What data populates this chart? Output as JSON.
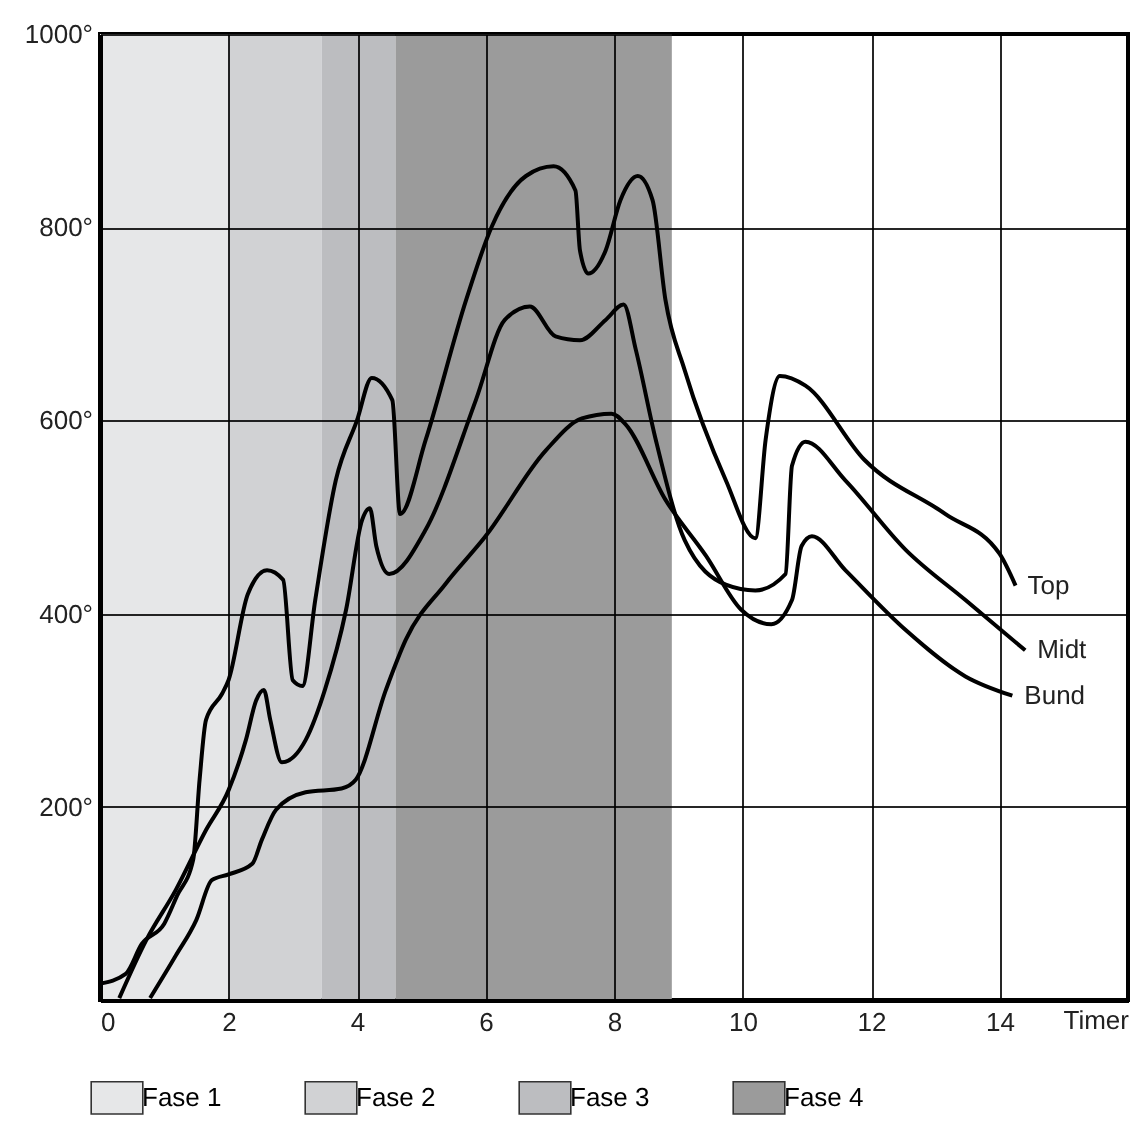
{
  "chart_data": {
    "type": "line",
    "xlabel": "Timer",
    "xlim": [
      0,
      16
    ],
    "xticks": [
      0,
      2,
      4,
      6,
      8,
      10,
      12,
      14
    ],
    "ylim": [
      0,
      1000
    ],
    "yticks": [
      {
        "value": 200,
        "label": "200°"
      },
      {
        "value": 400,
        "label": "400°"
      },
      {
        "value": 600,
        "label": "600°"
      },
      {
        "value": 800,
        "label": "800°"
      },
      {
        "value": 1000,
        "label": "1000°"
      }
    ],
    "grid": true,
    "legend": "bottom",
    "bands": [
      {
        "axis": "x",
        "from": 0,
        "to": 2,
        "label": "Fase 1",
        "color": "#e6e7e8"
      },
      {
        "axis": "x",
        "from": 2,
        "to": 3.45,
        "label": "Fase 2",
        "color": "#d1d2d4"
      },
      {
        "axis": "x",
        "from": 3.45,
        "to": 4.6,
        "label": "Fase 3",
        "color": "#bcbdc0"
      },
      {
        "axis": "x",
        "from": 4.6,
        "to": 8.9,
        "label": "Fase 4",
        "color": "#9b9b9b"
      }
    ],
    "series": [
      {
        "name": "Top",
        "color": "#000000",
        "x": [
          0,
          0.4,
          0.65,
          1.0,
          1.2,
          1.45,
          1.55,
          1.65,
          1.9,
          2.0,
          2.3,
          2.6,
          2.85,
          3.0,
          3.15,
          3.35,
          3.67,
          4.0,
          4.23,
          4.55,
          4.67,
          5.07,
          5.7,
          6.1,
          6.63,
          7.06,
          7.4,
          7.47,
          7.6,
          7.87,
          8.1,
          8.37,
          8.6,
          8.8,
          9.1,
          9.74,
          10.2,
          10.36,
          10.58,
          10.98,
          11.9,
          13.16,
          14.0,
          14.25
        ],
        "values": [
          17,
          27,
          58,
          79,
          108,
          145,
          228,
          290,
          317,
          331,
          420,
          445,
          435,
          331,
          325,
          414,
          538,
          600,
          644,
          621,
          503,
          580,
          725,
          801,
          853,
          863,
          838,
          776,
          752,
          776,
          828,
          853,
          828,
          725,
          652,
          538,
          478,
          580,
          646,
          636,
          559,
          503,
          462,
          429
        ]
      },
      {
        "name": "Midt",
        "color": "#000000",
        "x": [
          0.3,
          0.72,
          1.18,
          1.65,
          2.0,
          2.27,
          2.43,
          2.55,
          2.65,
          2.83,
          3.2,
          3.5,
          3.83,
          4.08,
          4.2,
          4.3,
          4.5,
          5.07,
          5.85,
          6.3,
          6.69,
          7.09,
          7.47,
          7.87,
          8.15,
          8.34,
          8.65,
          9.1,
          9.74,
          10.2,
          10.67,
          10.77,
          10.98,
          11.6,
          12.54,
          13.47,
          14.4
        ],
        "values": [
          2,
          62,
          114,
          176,
          217,
          269,
          310,
          321,
          290,
          246,
          269,
          321,
          404,
          497,
          509,
          470,
          441,
          487,
          621,
          704,
          718,
          687,
          683,
          704,
          720,
          673,
          580,
          476,
          430,
          424,
          441,
          553,
          578,
          538,
          466,
          414,
          362
        ]
      },
      {
        "name": "Bund",
        "color": "#000000",
        "x": [
          0.78,
          1.18,
          1.5,
          1.74,
          2.0,
          2.37,
          2.52,
          2.74,
          3.2,
          3.76,
          3.98,
          4.45,
          4.76,
          5.38,
          6.0,
          6.94,
          7.5,
          7.96,
          8.18,
          8.8,
          9.43,
          9.98,
          10.45,
          10.77,
          10.92,
          11.08,
          11.6,
          12.54,
          13.47,
          14.2
        ],
        "values": [
          2,
          46,
          83,
          124,
          130,
          141,
          166,
          197,
          215,
          219,
          228,
          321,
          373,
          431,
          480,
          569,
          602,
          607,
          596,
          518,
          460,
          404,
          389,
          414,
          470,
          480,
          445,
          383,
          335,
          315
        ]
      }
    ]
  }
}
